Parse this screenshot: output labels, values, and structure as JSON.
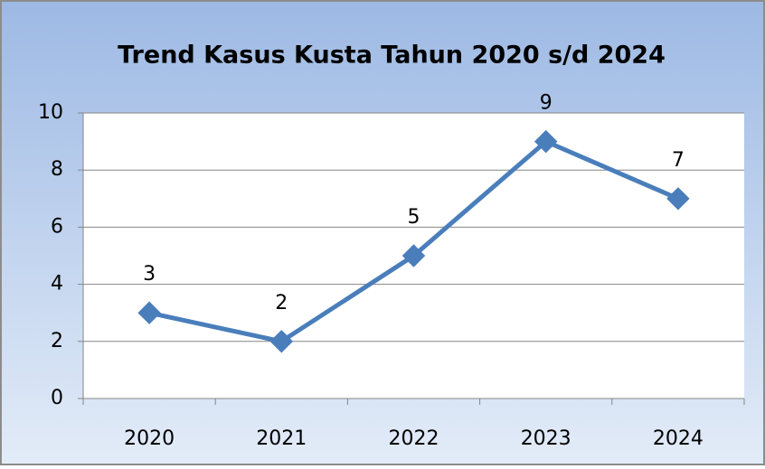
{
  "chart_data": {
    "type": "line",
    "title": "Trend Kasus Kusta Tahun  2020 s/d 2024",
    "categories": [
      "2020",
      "2021",
      "2022",
      "2023",
      "2024"
    ],
    "series": [
      {
        "name": "Kasus Kusta",
        "color": "#4a7ebb",
        "values": [
          3,
          2,
          5,
          9,
          7
        ]
      }
    ],
    "ylim": [
      0,
      10
    ],
    "yticks": [
      0,
      2,
      4,
      6,
      8,
      10
    ],
    "grid": true
  }
}
